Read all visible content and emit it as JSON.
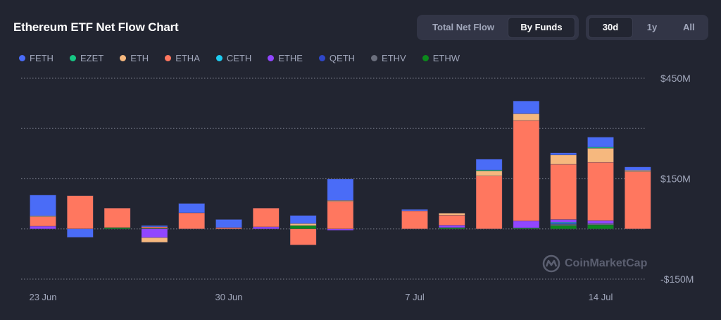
{
  "header": {
    "title": "Ethereum ETF Net Flow Chart",
    "view_toggle": [
      {
        "label": "Total Net Flow",
        "active": false
      },
      {
        "label": "By Funds",
        "active": true
      }
    ],
    "range_toggle": [
      {
        "label": "30d",
        "active": true
      },
      {
        "label": "1y",
        "active": false
      },
      {
        "label": "All",
        "active": false
      }
    ]
  },
  "watermark": "CoinMarketCap",
  "chart_data": {
    "type": "bar",
    "stacked": true,
    "title": "Ethereum ETF Net Flow Chart",
    "xlabel": "",
    "ylabel": "",
    "ylim": [
      -150,
      450
    ],
    "grid": true,
    "legend_position": "top-left",
    "y_ticks": [
      {
        "value": 450,
        "label": "$450M"
      },
      {
        "value": 150,
        "label": "$150M"
      },
      {
        "value": -150,
        "label": "-$150M"
      }
    ],
    "x_tick_labels": [
      {
        "category": "23 Jun",
        "label": "23 Jun"
      },
      {
        "category": "30 Jun",
        "label": "30 Jun"
      },
      {
        "category": "7 Jul",
        "label": "7 Jul"
      },
      {
        "category": "14 Jul",
        "label": "14 Jul"
      }
    ],
    "categories": [
      "23 Jun",
      "24 Jun",
      "25 Jun",
      "26 Jun",
      "27 Jun",
      "30 Jun",
      "1 Jul",
      "2 Jul",
      "3 Jul",
      "4 Jul",
      "7 Jul",
      "8 Jul",
      "9 Jul",
      "10 Jul",
      "11 Jul",
      "14 Jul",
      "15 Jul"
    ],
    "series": [
      {
        "name": "FETH",
        "color": "#4a6cf7",
        "values": [
          62,
          -25,
          0,
          4,
          28,
          24,
          0,
          24,
          64,
          0,
          4,
          0,
          32,
          38,
          6,
          30,
          10
        ]
      },
      {
        "name": "EZET",
        "color": "#16c784",
        "values": [
          0,
          0,
          0,
          0,
          0,
          0,
          0,
          0,
          0,
          0,
          0,
          0,
          3,
          0,
          0,
          3,
          0
        ]
      },
      {
        "name": "ETH",
        "color": "#f6b87e",
        "values": [
          3,
          0,
          0,
          -14,
          0,
          0,
          0,
          6,
          3,
          0,
          0,
          6,
          15,
          20,
          28,
          42,
          4
        ]
      },
      {
        "name": "ETHA",
        "color": "#ff775f",
        "values": [
          28,
          99,
          58,
          4,
          48,
          4,
          56,
          -48,
          82,
          0,
          54,
          30,
          158,
          300,
          165,
          174,
          171
        ]
      },
      {
        "name": "CETH",
        "color": "#1ecbf0",
        "values": [
          0,
          0,
          0,
          0,
          0,
          0,
          0,
          0,
          0,
          0,
          0,
          0,
          0,
          0,
          3,
          0,
          0
        ]
      },
      {
        "name": "ETHE",
        "color": "#9146ff",
        "values": [
          8,
          0,
          0,
          -26,
          0,
          0,
          6,
          0,
          -4,
          0,
          0,
          7,
          0,
          21,
          8,
          9,
          0
        ]
      },
      {
        "name": "QETH",
        "color": "#2f47c9",
        "values": [
          0,
          0,
          0,
          0,
          0,
          0,
          0,
          0,
          0,
          0,
          0,
          0,
          0,
          0,
          3,
          0,
          0
        ]
      },
      {
        "name": "ETHV",
        "color": "#6b6f7d",
        "values": [
          0,
          0,
          0,
          0,
          0,
          0,
          0,
          0,
          0,
          0,
          0,
          0,
          0,
          0,
          4,
          4,
          0
        ]
      },
      {
        "name": "ETHW",
        "color": "#0c8a1c",
        "values": [
          0,
          0,
          4,
          2,
          0,
          0,
          0,
          10,
          0,
          0,
          0,
          4,
          0,
          3,
          10,
          12,
          0
        ]
      }
    ]
  }
}
